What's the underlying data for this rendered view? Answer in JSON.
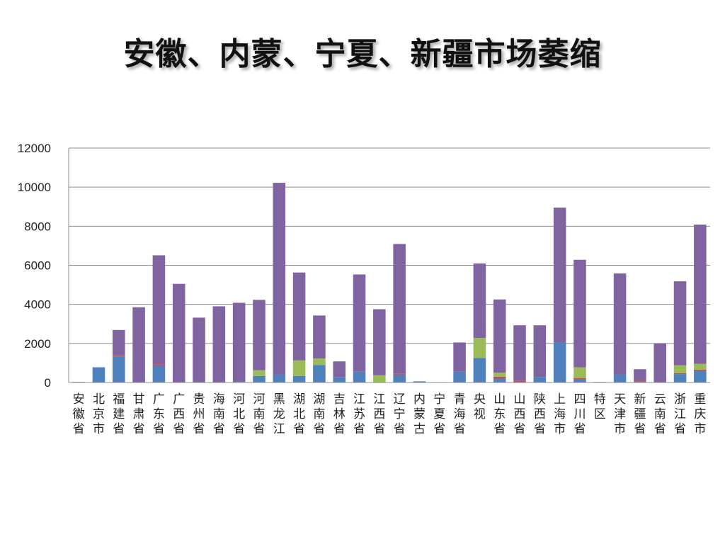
{
  "title": "安徽、内蒙、宁夏、新疆市场萎缩",
  "chart_data": {
    "type": "bar",
    "stacked": true,
    "title": "安徽、内蒙、宁夏、新疆市场萎缩",
    "xlabel": "",
    "ylabel": "",
    "ylim": [
      0,
      12000
    ],
    "yticks": [
      0,
      2000,
      4000,
      6000,
      8000,
      10000,
      12000
    ],
    "grid": true,
    "legend": "none",
    "categories": [
      "安徽省",
      "北京市",
      "福建省",
      "甘肃省",
      "广东省",
      "广西省",
      "贵州省",
      "海南省",
      "河北省",
      "河南省",
      "黑龙江",
      "湖北省",
      "湖南省",
      "吉林省",
      "江苏省",
      "江西省",
      "辽宁省",
      "内蒙古",
      "宁夏省",
      "青海省",
      "央视",
      "山东省",
      "山西省",
      "陕西省",
      "上海市",
      "四川省",
      "特区",
      "天津市",
      "新疆省",
      "云南省",
      "浙江省",
      "重庆市"
    ],
    "series": [
      {
        "color": "#4F81BD",
        "values": [
          30,
          780,
          1330,
          0,
          850,
          0,
          0,
          0,
          30,
          330,
          400,
          330,
          900,
          280,
          550,
          0,
          400,
          60,
          0,
          550,
          1250,
          200,
          0,
          280,
          2050,
          150,
          0,
          400,
          50,
          0,
          430,
          600
        ]
      },
      {
        "color": "#C0504D",
        "values": [
          0,
          0,
          60,
          0,
          80,
          0,
          0,
          0,
          0,
          0,
          0,
          0,
          0,
          0,
          0,
          0,
          60,
          0,
          20,
          0,
          0,
          100,
          80,
          0,
          0,
          80,
          0,
          0,
          60,
          0,
          50,
          60
        ]
      },
      {
        "color": "#9BBB59",
        "values": [
          0,
          0,
          0,
          0,
          0,
          0,
          0,
          0,
          0,
          300,
          0,
          800,
          330,
          0,
          0,
          370,
          0,
          0,
          0,
          0,
          1030,
          200,
          0,
          0,
          0,
          550,
          0,
          0,
          0,
          0,
          400,
          300
        ]
      },
      {
        "color": "#8064A2",
        "values": [
          0,
          0,
          1300,
          3850,
          5580,
          5050,
          3320,
          3900,
          4050,
          3600,
          9820,
          4500,
          2200,
          800,
          4980,
          3380,
          6630,
          0,
          0,
          1500,
          3810,
          3750,
          2850,
          2650,
          6900,
          5500,
          0,
          5180,
          570,
          2000,
          4300,
          7120
        ]
      }
    ]
  }
}
